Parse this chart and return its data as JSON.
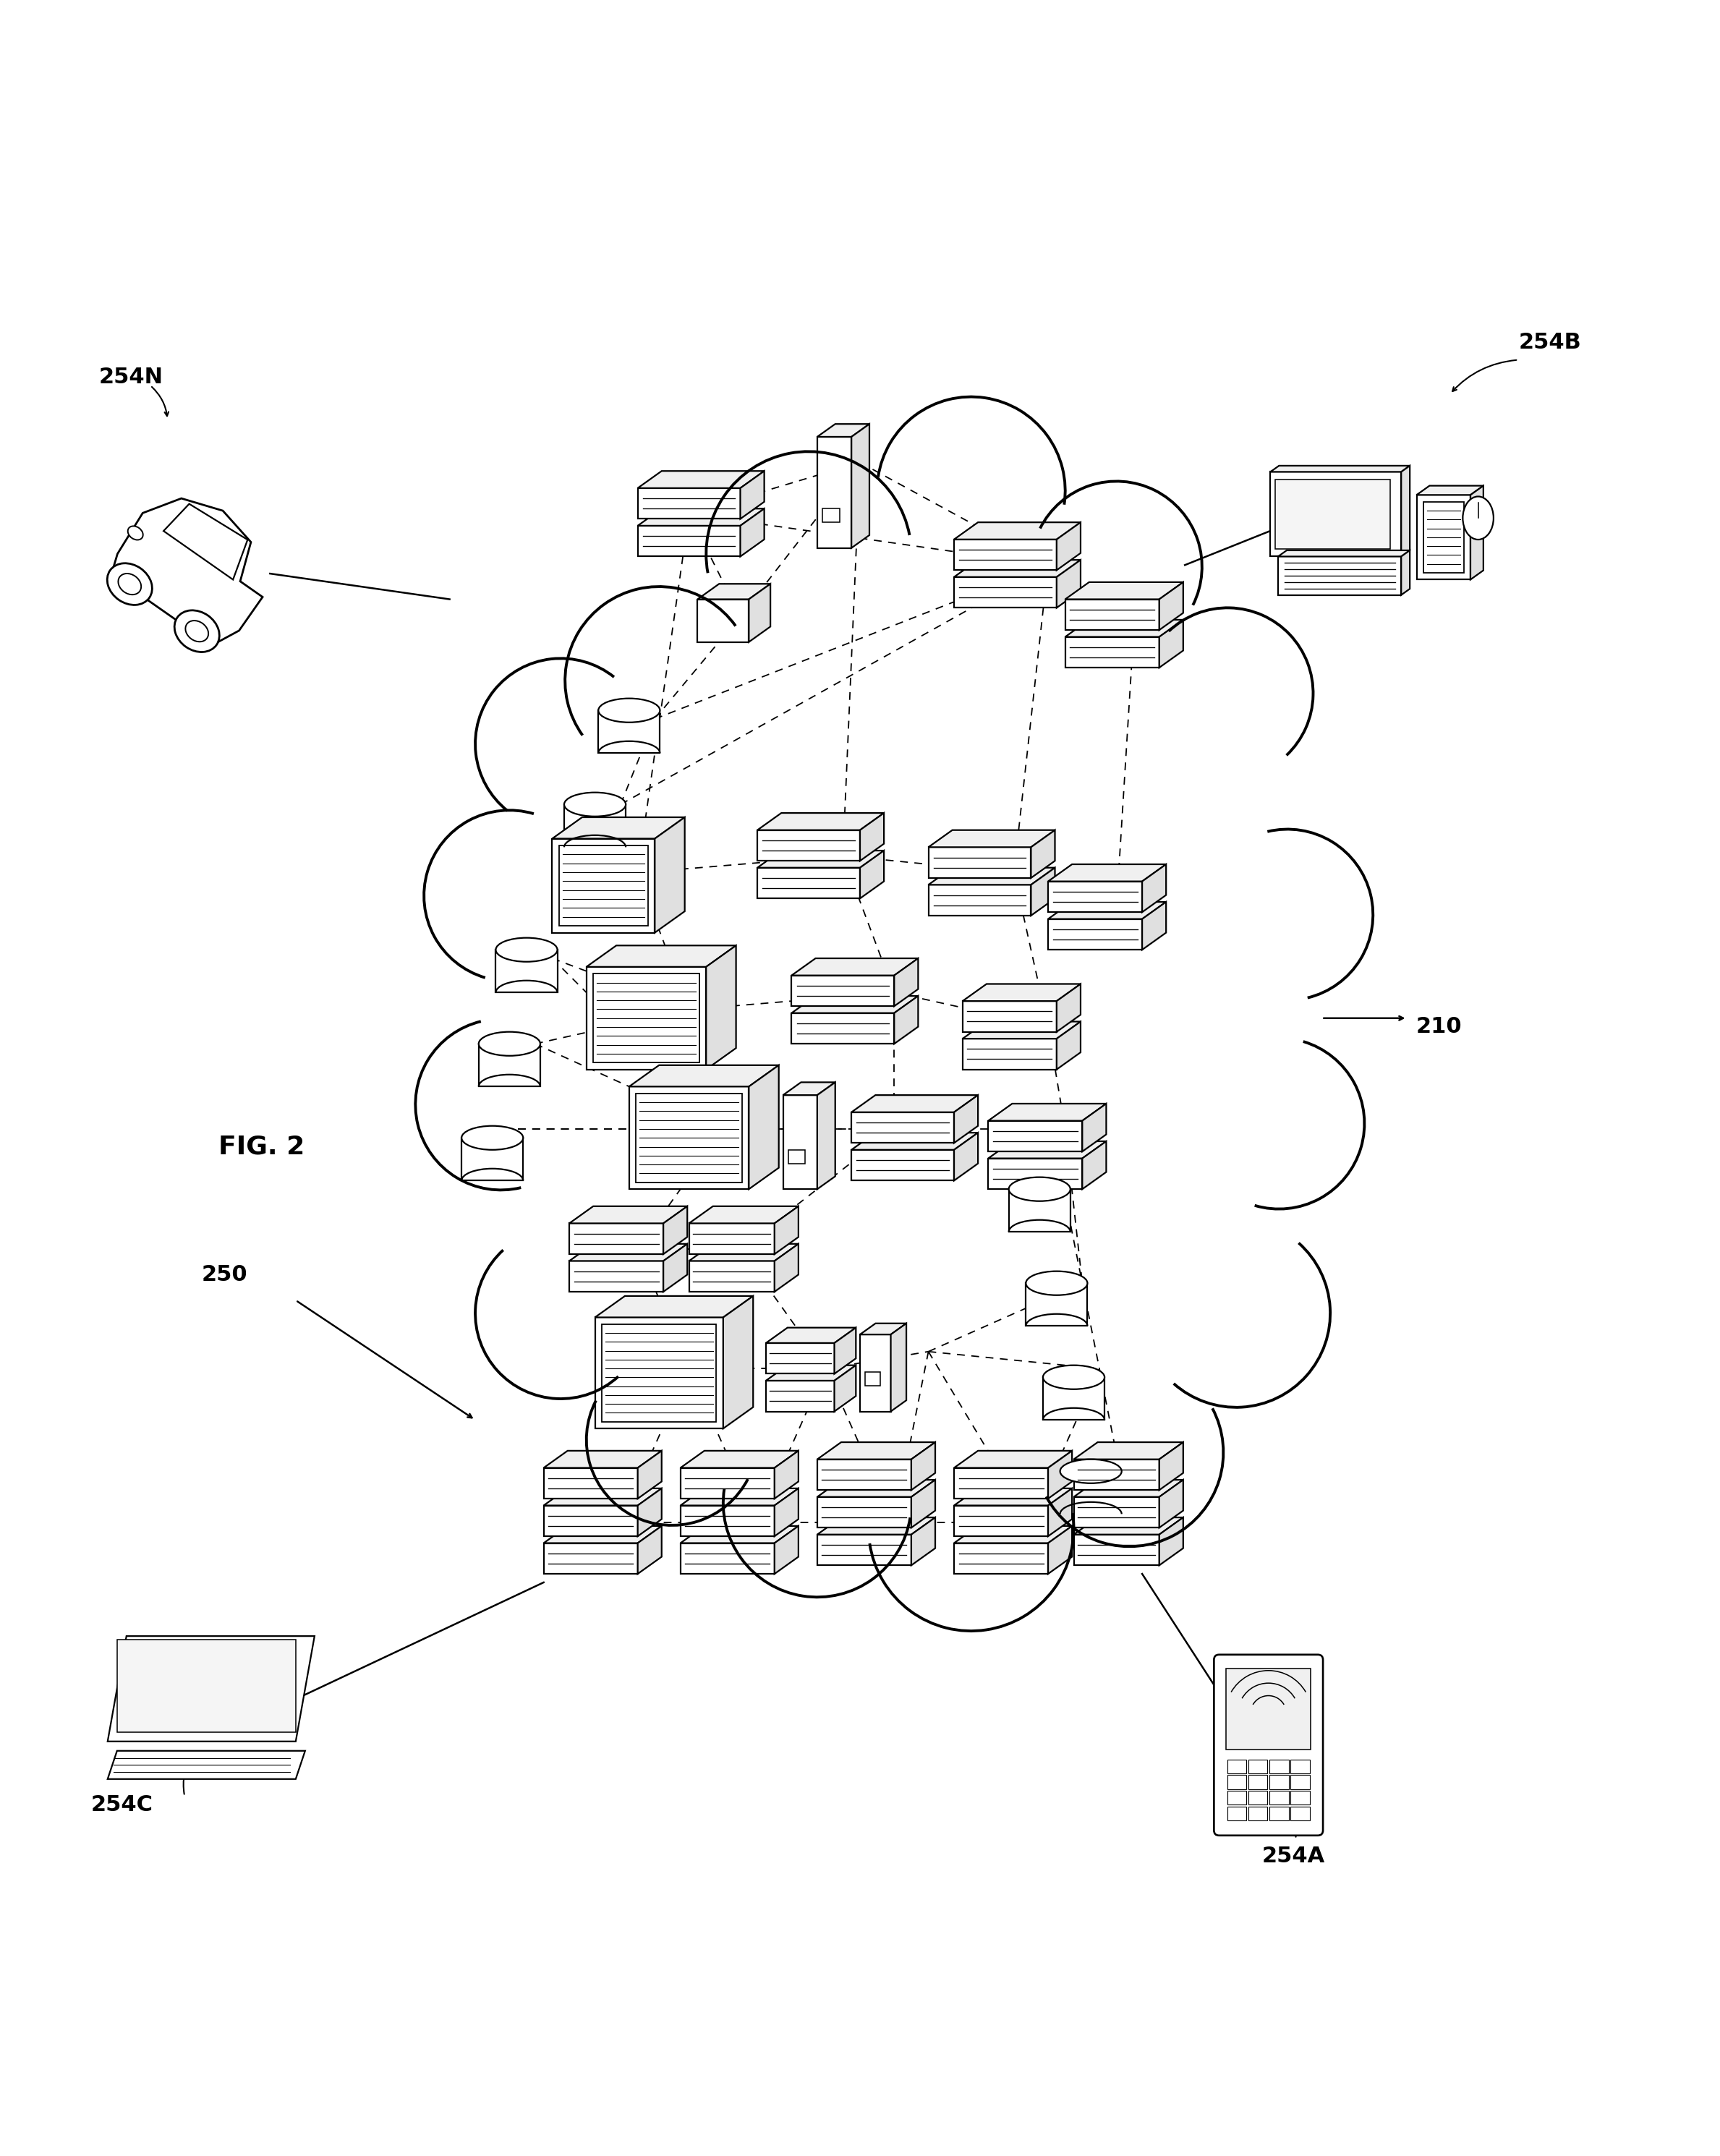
{
  "background_color": "#ffffff",
  "line_color": "#000000",
  "fig_label": "FIG. 2",
  "cloud_label": "210",
  "arrow_250_label": "250",
  "labels": {
    "car": "254N",
    "desktop": "254B",
    "laptop": "254C",
    "phone": "254A"
  }
}
